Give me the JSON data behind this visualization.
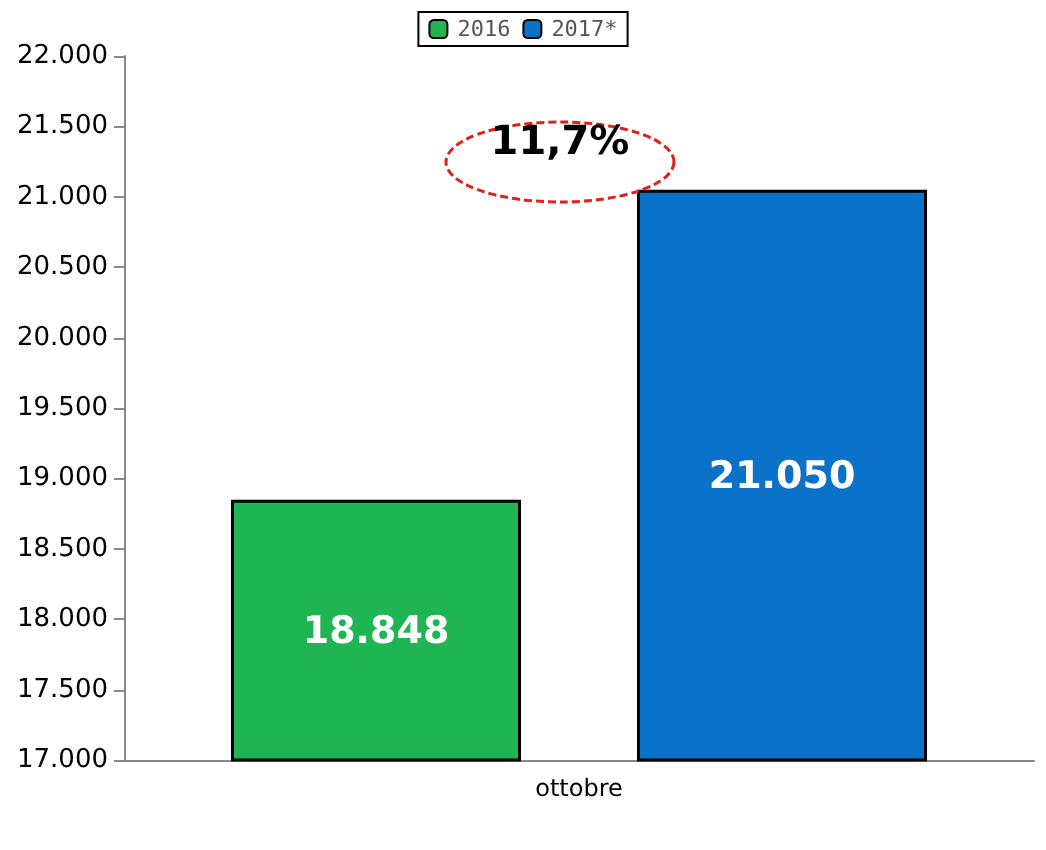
{
  "chart_data": {
    "type": "bar",
    "categories": [
      "ottobre"
    ],
    "series": [
      {
        "name": "2016",
        "color": "#1fb552",
        "values": [
          18848
        ],
        "value_labels": [
          "18.848"
        ]
      },
      {
        "name": "2017*",
        "color": "#0a72c8",
        "values": [
          21050
        ],
        "value_labels": [
          "21.050"
        ]
      }
    ],
    "ylim": [
      17000,
      22000
    ],
    "yticks": [
      {
        "value": 17000,
        "label": "17.000"
      },
      {
        "value": 17500,
        "label": "17.500"
      },
      {
        "value": 18000,
        "label": "18.000"
      },
      {
        "value": 18500,
        "label": "18.500"
      },
      {
        "value": 19000,
        "label": "19.000"
      },
      {
        "value": 19500,
        "label": "19.500"
      },
      {
        "value": 20000,
        "label": "20.000"
      },
      {
        "value": 20500,
        "label": "20.500"
      },
      {
        "value": 21000,
        "label": "21.000"
      },
      {
        "value": 21500,
        "label": "21.500"
      },
      {
        "value": 22000,
        "label": "22.000"
      }
    ],
    "annotations": [
      "11,7%"
    ],
    "grid": false,
    "legend": "top"
  }
}
